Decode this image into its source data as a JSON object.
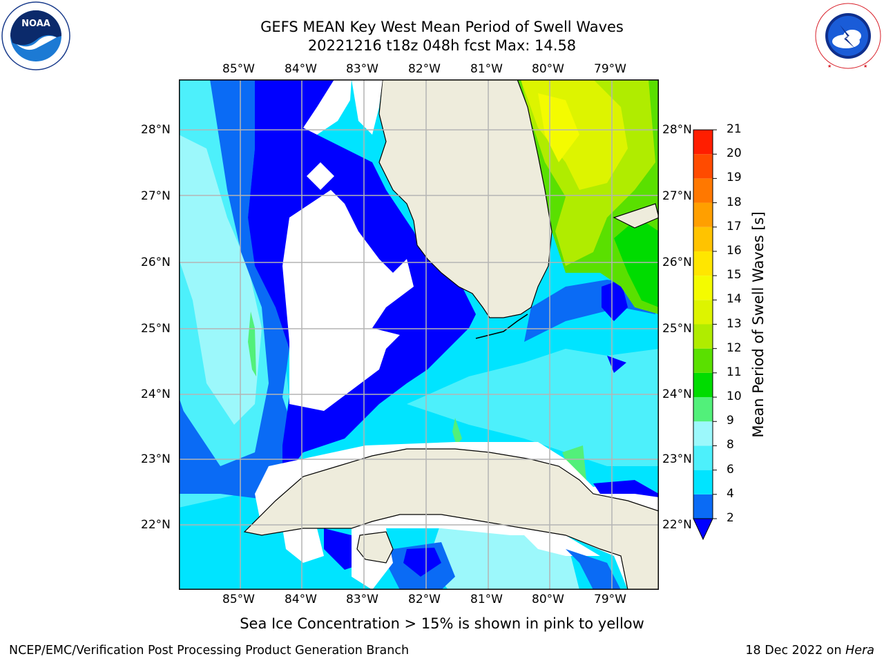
{
  "header": {
    "title_line1": "GEFS MEAN Key West Mean Period of Swell Waves",
    "title_line2": "20221216 t18z 048h fcst   Max: 14.58"
  },
  "logos": {
    "left": "NOAA",
    "left_ring_text": "NATIONAL OCEANIC AND ATMOSPHERIC ADMINISTRATION · U.S. DEPARTMENT OF COMMERCE",
    "right_ring_text": "NATIONAL WEATHER SERVICE"
  },
  "map": {
    "lon_labels": [
      "85°W",
      "84°W",
      "83°W",
      "82°W",
      "81°W",
      "80°W",
      "79°W"
    ],
    "lat_labels": [
      "28°N",
      "27°N",
      "26°N",
      "25°N",
      "24°N",
      "23°N",
      "22°N"
    ],
    "colors": {
      "land": "#eeecdc",
      "no_data": "#ffffff",
      "grid": "#b4b4b4"
    }
  },
  "colorbar": {
    "label": "Mean Period of Swell Waves [s]",
    "ticks": [
      "21",
      "20",
      "19",
      "18",
      "17",
      "16",
      "15",
      "14",
      "13",
      "12",
      "11",
      "10",
      "9",
      "8",
      "6",
      "4",
      "2"
    ],
    "bins": [
      {
        "from": 2,
        "to": 4,
        "color": "#0a6bf5"
      },
      {
        "from": 4,
        "to": 6,
        "color": "#00e4ff"
      },
      {
        "from": 6,
        "to": 8,
        "color": "#4df0fb"
      },
      {
        "from": 8,
        "to": 9,
        "color": "#9cf8fb"
      },
      {
        "from": 9,
        "to": 10,
        "color": "#52f07a"
      },
      {
        "from": 10,
        "to": 11,
        "color": "#00dc00"
      },
      {
        "from": 11,
        "to": 12,
        "color": "#5ae000"
      },
      {
        "from": 12,
        "to": 13,
        "color": "#b0ec00"
      },
      {
        "from": 13,
        "to": 14,
        "color": "#ddf400"
      },
      {
        "from": 14,
        "to": 15,
        "color": "#f4fb00"
      },
      {
        "from": 15,
        "to": 16,
        "color": "#ffe600"
      },
      {
        "from": 16,
        "to": 17,
        "color": "#ffc300"
      },
      {
        "from": 17,
        "to": 18,
        "color": "#ff9f00"
      },
      {
        "from": 18,
        "to": 19,
        "color": "#ff7800"
      },
      {
        "from": 19,
        "to": 20,
        "color": "#ff4b00"
      },
      {
        "from": 20,
        "to": 21,
        "color": "#ff1e00"
      }
    ],
    "under_color": "#0000ff"
  },
  "notes": {
    "sea_ice": "Sea Ice Concentration > 15% is shown in pink to yellow"
  },
  "footer": {
    "left": "NCEP/EMC/Verification Post Processing Product Generation Branch",
    "date": "18 Dec 2022 on ",
    "machine": "Hera"
  }
}
